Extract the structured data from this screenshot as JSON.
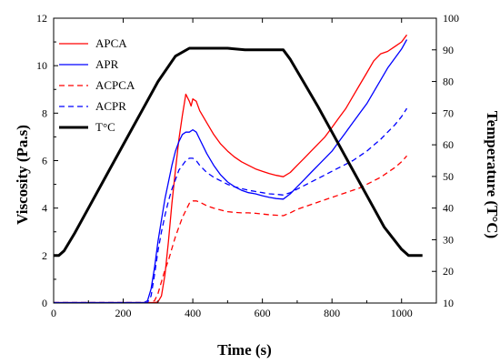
{
  "chart_data": {
    "type": "line",
    "title": "",
    "xlabel": "Time (s)",
    "ylabel": "Viscosity (Pa.s)",
    "y2label": "Temperature (T°C)",
    "xlim": [
      0,
      1100
    ],
    "ylim": [
      0,
      12
    ],
    "y2lim": [
      10,
      100
    ],
    "x_ticks": [
      0,
      200,
      400,
      600,
      800,
      1000
    ],
    "y_ticks": [
      0,
      2,
      4,
      6,
      8,
      10,
      12
    ],
    "y2_ticks": [
      10,
      20,
      30,
      40,
      50,
      60,
      70,
      80,
      90,
      100
    ],
    "grid": false,
    "legend_position": "top-left",
    "series": [
      {
        "name": "APCA",
        "axis": "left",
        "color": "#ff0000",
        "dash": "solid",
        "points": [
          [
            0,
            0.02
          ],
          [
            290,
            0.02
          ],
          [
            300,
            0.05
          ],
          [
            310,
            0.3
          ],
          [
            320,
            1.2
          ],
          [
            330,
            2.6
          ],
          [
            340,
            4.2
          ],
          [
            350,
            5.6
          ],
          [
            360,
            6.9
          ],
          [
            370,
            7.9
          ],
          [
            380,
            8.8
          ],
          [
            390,
            8.5
          ],
          [
            395,
            8.3
          ],
          [
            400,
            8.6
          ],
          [
            410,
            8.5
          ],
          [
            420,
            8.1
          ],
          [
            440,
            7.6
          ],
          [
            460,
            7.1
          ],
          [
            480,
            6.7
          ],
          [
            500,
            6.4
          ],
          [
            520,
            6.15
          ],
          [
            540,
            5.95
          ],
          [
            560,
            5.8
          ],
          [
            580,
            5.65
          ],
          [
            600,
            5.55
          ],
          [
            620,
            5.45
          ],
          [
            640,
            5.38
          ],
          [
            660,
            5.32
          ],
          [
            680,
            5.5
          ],
          [
            700,
            5.8
          ],
          [
            720,
            6.1
          ],
          [
            740,
            6.4
          ],
          [
            760,
            6.7
          ],
          [
            780,
            7.0
          ],
          [
            800,
            7.4
          ],
          [
            820,
            7.8
          ],
          [
            840,
            8.2
          ],
          [
            860,
            8.7
          ],
          [
            880,
            9.2
          ],
          [
            900,
            9.7
          ],
          [
            920,
            10.2
          ],
          [
            940,
            10.5
          ],
          [
            960,
            10.6
          ],
          [
            980,
            10.8
          ],
          [
            1000,
            11.0
          ],
          [
            1015,
            11.3
          ]
        ]
      },
      {
        "name": "APR",
        "axis": "left",
        "color": "#0000ff",
        "dash": "solid",
        "points": [
          [
            0,
            0.02
          ],
          [
            260,
            0.02
          ],
          [
            270,
            0.1
          ],
          [
            280,
            0.6
          ],
          [
            290,
            1.5
          ],
          [
            300,
            2.6
          ],
          [
            310,
            3.5
          ],
          [
            320,
            4.4
          ],
          [
            330,
            5.1
          ],
          [
            340,
            5.8
          ],
          [
            350,
            6.4
          ],
          [
            360,
            6.8
          ],
          [
            370,
            7.1
          ],
          [
            380,
            7.2
          ],
          [
            390,
            7.2
          ],
          [
            400,
            7.3
          ],
          [
            410,
            7.2
          ],
          [
            420,
            6.9
          ],
          [
            440,
            6.3
          ],
          [
            460,
            5.8
          ],
          [
            480,
            5.4
          ],
          [
            500,
            5.1
          ],
          [
            520,
            4.9
          ],
          [
            540,
            4.75
          ],
          [
            560,
            4.65
          ],
          [
            580,
            4.6
          ],
          [
            600,
            4.52
          ],
          [
            620,
            4.45
          ],
          [
            640,
            4.4
          ],
          [
            660,
            4.38
          ],
          [
            680,
            4.6
          ],
          [
            700,
            4.9
          ],
          [
            720,
            5.2
          ],
          [
            740,
            5.5
          ],
          [
            760,
            5.8
          ],
          [
            780,
            6.1
          ],
          [
            800,
            6.4
          ],
          [
            820,
            6.8
          ],
          [
            840,
            7.2
          ],
          [
            860,
            7.6
          ],
          [
            880,
            8.0
          ],
          [
            900,
            8.4
          ],
          [
            920,
            8.9
          ],
          [
            940,
            9.4
          ],
          [
            960,
            9.9
          ],
          [
            980,
            10.3
          ],
          [
            1000,
            10.7
          ],
          [
            1015,
            11.1
          ]
        ]
      },
      {
        "name": "ACPCA",
        "axis": "left",
        "color": "#ff0000",
        "dash": "dashed",
        "points": [
          [
            0,
            0.02
          ],
          [
            280,
            0.02
          ],
          [
            290,
            0.1
          ],
          [
            300,
            0.4
          ],
          [
            310,
            0.9
          ],
          [
            320,
            1.4
          ],
          [
            330,
            1.8
          ],
          [
            340,
            2.3
          ],
          [
            350,
            2.8
          ],
          [
            360,
            3.2
          ],
          [
            370,
            3.6
          ],
          [
            380,
            3.9
          ],
          [
            390,
            4.2
          ],
          [
            400,
            4.3
          ],
          [
            410,
            4.3
          ],
          [
            420,
            4.25
          ],
          [
            440,
            4.1
          ],
          [
            460,
            4.0
          ],
          [
            480,
            3.92
          ],
          [
            500,
            3.85
          ],
          [
            520,
            3.82
          ],
          [
            540,
            3.8
          ],
          [
            560,
            3.8
          ],
          [
            580,
            3.78
          ],
          [
            600,
            3.75
          ],
          [
            620,
            3.72
          ],
          [
            640,
            3.7
          ],
          [
            660,
            3.68
          ],
          [
            680,
            3.8
          ],
          [
            700,
            3.95
          ],
          [
            720,
            4.05
          ],
          [
            740,
            4.15
          ],
          [
            760,
            4.25
          ],
          [
            780,
            4.35
          ],
          [
            800,
            4.45
          ],
          [
            820,
            4.55
          ],
          [
            840,
            4.65
          ],
          [
            860,
            4.75
          ],
          [
            880,
            4.85
          ],
          [
            900,
            5.0
          ],
          [
            920,
            5.15
          ],
          [
            940,
            5.3
          ],
          [
            960,
            5.5
          ],
          [
            980,
            5.7
          ],
          [
            1000,
            5.95
          ],
          [
            1015,
            6.2
          ]
        ]
      },
      {
        "name": "ACPR",
        "axis": "left",
        "color": "#0000ff",
        "dash": "dashed",
        "points": [
          [
            0,
            0.02
          ],
          [
            270,
            0.02
          ],
          [
            280,
            0.3
          ],
          [
            290,
            1.2
          ],
          [
            300,
            2.2
          ],
          [
            310,
            3.0
          ],
          [
            320,
            3.7
          ],
          [
            330,
            4.3
          ],
          [
            340,
            4.8
          ],
          [
            350,
            5.2
          ],
          [
            360,
            5.6
          ],
          [
            370,
            5.8
          ],
          [
            380,
            6.0
          ],
          [
            390,
            6.1
          ],
          [
            400,
            6.1
          ],
          [
            410,
            6.0
          ],
          [
            420,
            5.8
          ],
          [
            440,
            5.5
          ],
          [
            460,
            5.3
          ],
          [
            480,
            5.15
          ],
          [
            500,
            5.0
          ],
          [
            520,
            4.9
          ],
          [
            540,
            4.82
          ],
          [
            560,
            4.75
          ],
          [
            580,
            4.7
          ],
          [
            600,
            4.65
          ],
          [
            620,
            4.6
          ],
          [
            640,
            4.58
          ],
          [
            660,
            4.55
          ],
          [
            680,
            4.65
          ],
          [
            700,
            4.8
          ],
          [
            720,
            4.95
          ],
          [
            740,
            5.1
          ],
          [
            760,
            5.25
          ],
          [
            780,
            5.4
          ],
          [
            800,
            5.55
          ],
          [
            820,
            5.7
          ],
          [
            840,
            5.85
          ],
          [
            860,
            6.0
          ],
          [
            880,
            6.2
          ],
          [
            900,
            6.4
          ],
          [
            920,
            6.65
          ],
          [
            940,
            6.9
          ],
          [
            960,
            7.2
          ],
          [
            980,
            7.5
          ],
          [
            1000,
            7.85
          ],
          [
            1015,
            8.2
          ]
        ]
      },
      {
        "name": "T°C",
        "axis": "right",
        "color": "#000000",
        "dash": "solid",
        "points": [
          [
            0,
            25
          ],
          [
            15,
            25
          ],
          [
            30,
            26.5
          ],
          [
            60,
            32
          ],
          [
            100,
            40
          ],
          [
            150,
            50
          ],
          [
            200,
            60
          ],
          [
            250,
            70
          ],
          [
            300,
            80
          ],
          [
            350,
            88
          ],
          [
            390,
            90.5
          ],
          [
            400,
            90.5
          ],
          [
            450,
            90.5
          ],
          [
            500,
            90.5
          ],
          [
            550,
            90
          ],
          [
            600,
            90
          ],
          [
            650,
            90
          ],
          [
            660,
            90
          ],
          [
            680,
            87
          ],
          [
            720,
            79.5
          ],
          [
            760,
            72
          ],
          [
            800,
            64
          ],
          [
            850,
            54
          ],
          [
            900,
            44
          ],
          [
            950,
            34
          ],
          [
            1000,
            27
          ],
          [
            1020,
            25
          ],
          [
            1040,
            25
          ],
          [
            1060,
            25
          ]
        ]
      }
    ]
  }
}
